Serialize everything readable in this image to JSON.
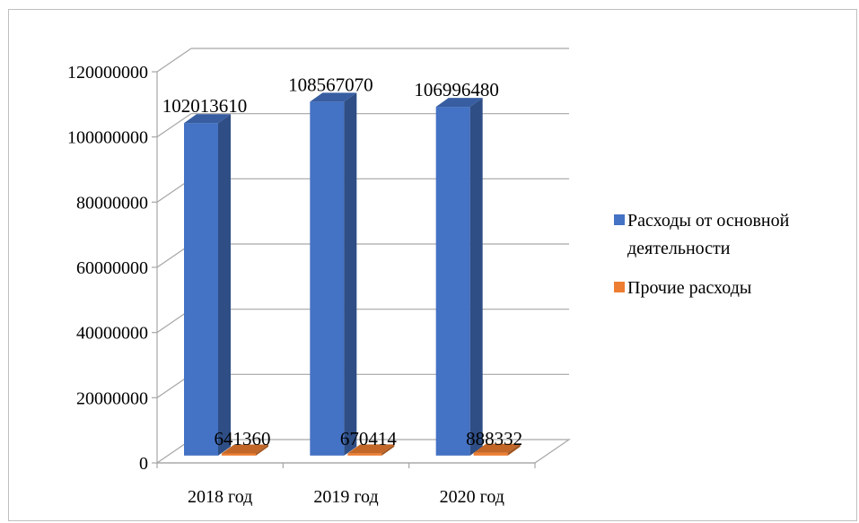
{
  "chart_data": {
    "type": "bar",
    "style": "3d-clustered-column",
    "title": "",
    "xlabel": "",
    "ylabel": "",
    "categories": [
      "2018 год",
      "2019 год",
      "2020 год"
    ],
    "series": [
      {
        "name": "Расходы от основной деятельности",
        "color": "#4472C4",
        "values": [
          102013610,
          108567070,
          106996480
        ]
      },
      {
        "name": "Прочие расходы",
        "color": "#ED7D31",
        "values": [
          641360,
          670414,
          888332
        ]
      }
    ],
    "ylim": [
      0,
      120000000
    ],
    "yticks": [
      0,
      20000000,
      40000000,
      60000000,
      80000000,
      100000000,
      120000000
    ],
    "ytick_labels": [
      "0",
      "20000000",
      "40000000",
      "60000000",
      "80000000",
      "100000000",
      "120000000"
    ],
    "grid": true,
    "legend_position": "right"
  }
}
